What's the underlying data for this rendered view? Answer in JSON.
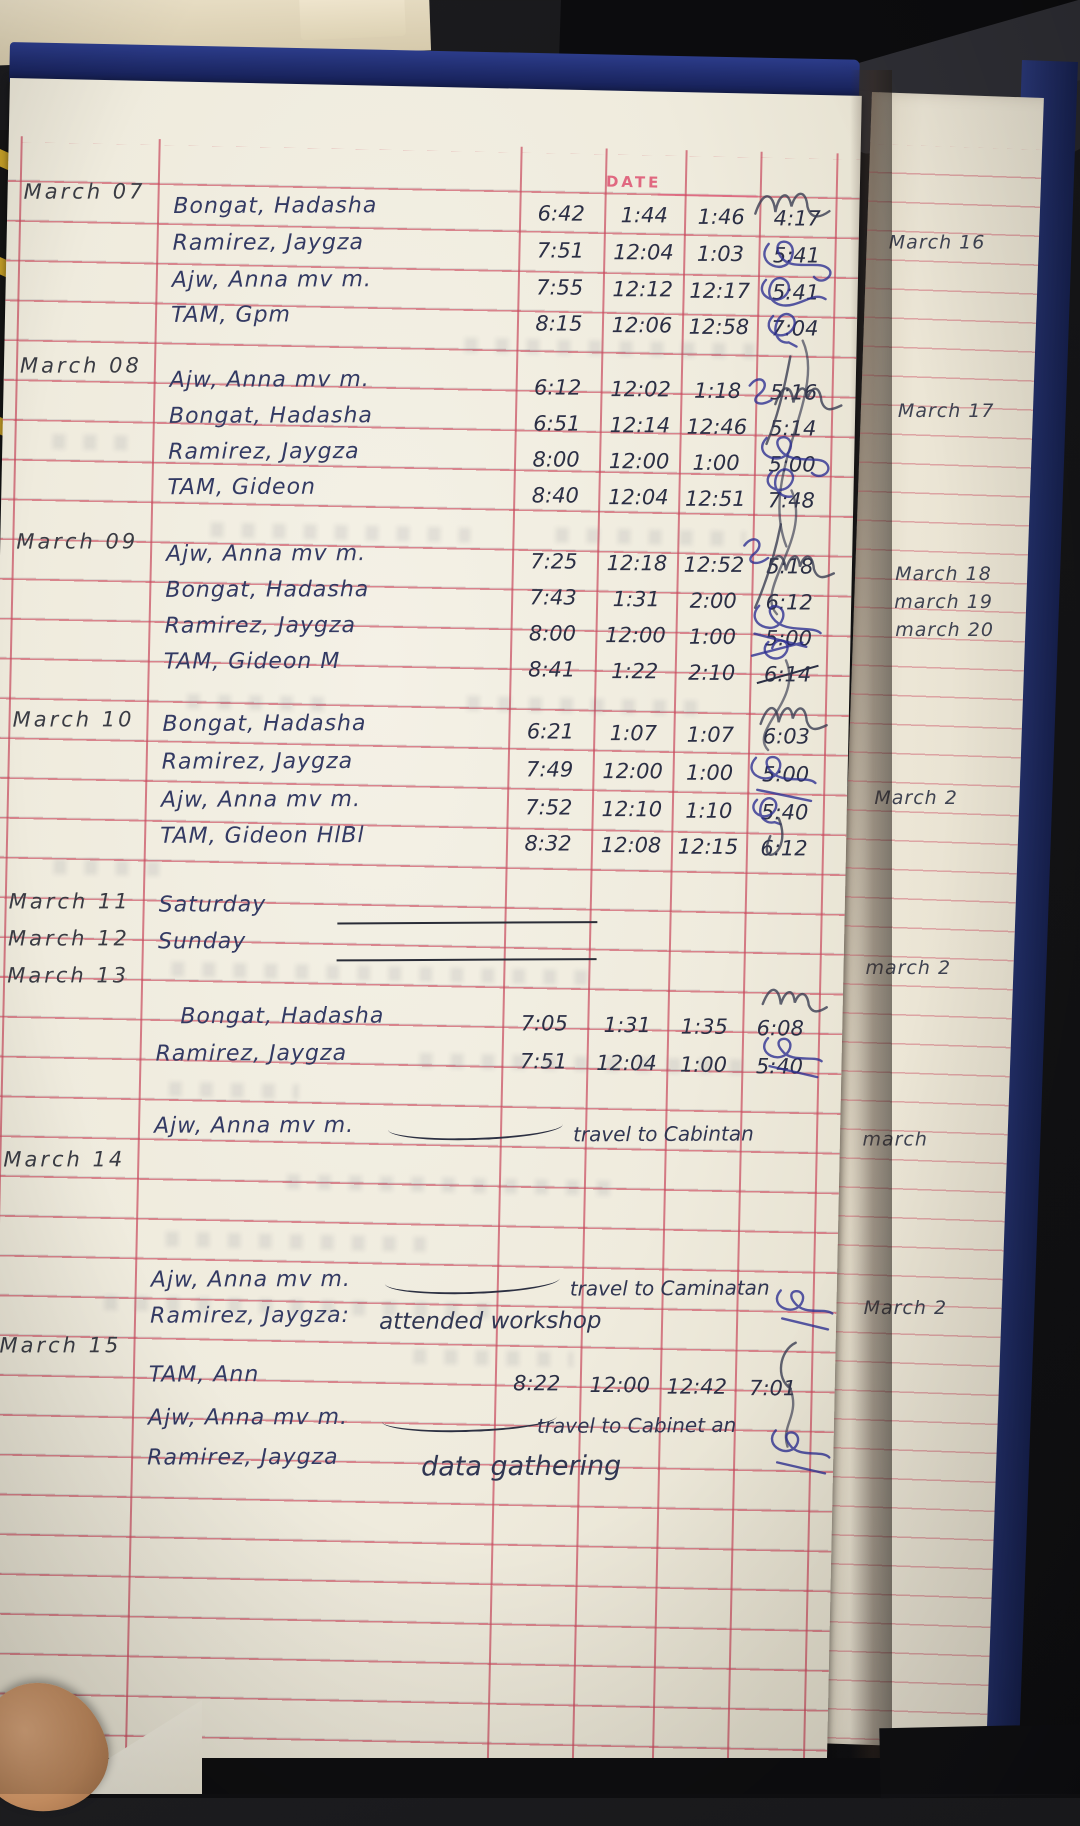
{
  "photo": {
    "printed_date_label": "DATE"
  },
  "log": {
    "sections": [
      {
        "date": "March 07",
        "entries": [
          {
            "name": "Bongat, Hadasha",
            "times": [
              "6:42",
              "1:44",
              "1:46",
              "4:17"
            ]
          },
          {
            "name": "Ramirez, Jaygza",
            "times": [
              "7:51",
              "12:04",
              "1:03",
              "5:41"
            ]
          },
          {
            "name": "Ajw, Anna mv m.",
            "times": [
              "7:55",
              "12:12",
              "12:17",
              "5:41"
            ]
          },
          {
            "name": "TAM, Gpm",
            "times": [
              "8:15",
              "12:06",
              "12:58",
              "7:04"
            ]
          }
        ]
      },
      {
        "date": "March 08",
        "entries": [
          {
            "name": "Ajw, Anna mv m.",
            "times": [
              "6:12",
              "12:02",
              "1:18",
              "5:16"
            ]
          },
          {
            "name": "Bongat, Hadasha",
            "times": [
              "6:51",
              "12:14",
              "12:46",
              "5:14"
            ]
          },
          {
            "name": "Ramirez, Jaygza",
            "times": [
              "8:00",
              "12:00",
              "1:00",
              "5:00"
            ]
          },
          {
            "name": "TAM, Gideon",
            "times": [
              "8:40",
              "12:04",
              "12:51",
              "7:48"
            ]
          }
        ]
      },
      {
        "date": "March 09",
        "entries": [
          {
            "name": "Ajw, Anna mv m.",
            "times": [
              "7:25",
              "12:18",
              "12:52",
              "5:18"
            ]
          },
          {
            "name": "Bongat, Hadasha",
            "times": [
              "7:43",
              "1:31",
              "2:00",
              "6:12"
            ]
          },
          {
            "name": "Ramirez, Jaygza",
            "times": [
              "8:00",
              "12:00",
              "1:00",
              "5:00"
            ]
          },
          {
            "name": "TAM, Gideon M",
            "times": [
              "8:41",
              "1:22",
              "2:10",
              "6:14"
            ],
            "strike_last": true
          }
        ]
      },
      {
        "date": "March 10",
        "entries": [
          {
            "name": "Bongat, Hadasha",
            "times": [
              "6:21",
              "1:07",
              "1:07",
              "6:03"
            ]
          },
          {
            "name": "Ramirez, Jaygza",
            "times": [
              "7:49",
              "12:00",
              "1:00",
              "5:00"
            ]
          },
          {
            "name": "Ajw, Anna mv m.",
            "times": [
              "7:52",
              "12:10",
              "1:10",
              "5:40"
            ]
          },
          {
            "name": "TAM, Gideon HlBl",
            "times": [
              "8:32",
              "12:08",
              "12:15",
              "6:12"
            ]
          }
        ]
      },
      {
        "date": "March 11",
        "entries": [
          {
            "name": "Saturday",
            "rule": true
          }
        ]
      },
      {
        "date": "March 12",
        "entries": [
          {
            "name": "Sunday",
            "rule": true
          }
        ]
      },
      {
        "date": "March 13",
        "entries": [
          {
            "name": "Bongat, Hadasha",
            "times": [
              "7:05",
              "1:31",
              "1:35",
              "6:08"
            ]
          },
          {
            "name": "Ramirez, Jaygza",
            "times": [
              "7:51",
              "12:04",
              "1:00",
              "5:40"
            ]
          },
          {
            "name": "Ajw, Anna mv m.",
            "note": "travel to Cabintan",
            "dash": true
          }
        ]
      },
      {
        "date": "March 14",
        "entries": [
          {
            "name": "Ajw, Anna mv m.",
            "note": "travel to Caminatan",
            "dash": true
          },
          {
            "name": "Ramirez, Jaygza:",
            "note": "attended workshop"
          }
        ]
      },
      {
        "date": "March 15",
        "entries": [
          {
            "name": "TAM, Ann",
            "times": [
              "8:22",
              "12:00",
              "12:42",
              "7:01"
            ]
          },
          {
            "name": "Ajw, Anna mv m.",
            "note": "travel to Cabinet an",
            "dash": true
          },
          {
            "name": "Ramirez, Jaygza",
            "note": "data gathering"
          }
        ]
      }
    ]
  },
  "next_page_dates": [
    "March 16",
    "March 17",
    "March 18",
    "march 19",
    "march 20",
    "March 2",
    "march 2",
    "march",
    "March 2"
  ]
}
